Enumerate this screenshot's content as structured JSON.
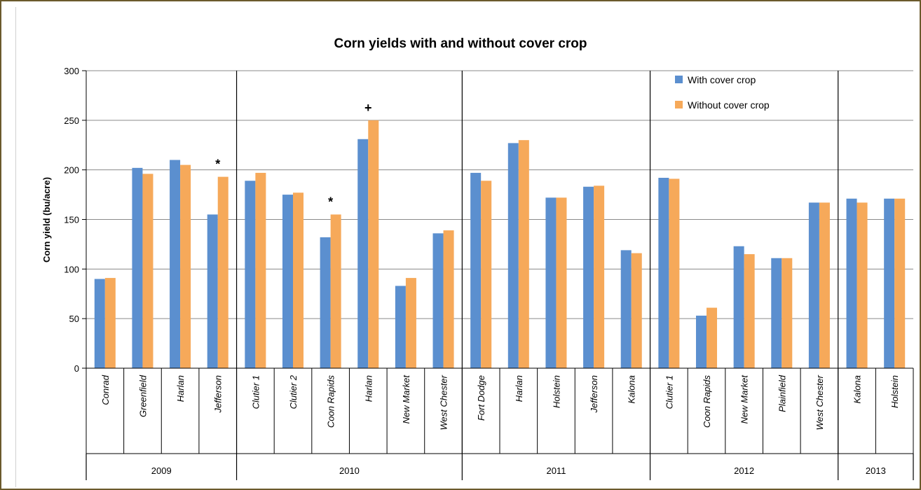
{
  "chart_data": {
    "type": "bar",
    "title": "Corn yields with and without cover crop",
    "ylabel": "Corn yield (bu/acre)",
    "xlabel": "",
    "ylim": [
      0,
      300
    ],
    "yticks": [
      0,
      50,
      100,
      150,
      200,
      250,
      300
    ],
    "grid": true,
    "legend_position": "top-right",
    "colors": {
      "with": "#5b8fcf",
      "without": "#f6a95a"
    },
    "groups": [
      {
        "label": "2009",
        "categories": [
          "Conrad",
          "Greenfield",
          "Harlan",
          "Jefferson"
        ]
      },
      {
        "label": "2010",
        "categories": [
          "Clutier 1",
          "Clutier 2",
          "Coon Rapids",
          "Harlan",
          "New Market",
          "West Chester"
        ]
      },
      {
        "label": "2011",
        "categories": [
          "Fort Dodge",
          "Harlan",
          "Holstein",
          "Jefferson",
          "Kalona"
        ]
      },
      {
        "label": "2012",
        "categories": [
          "Clutier 1",
          "Coon Rapids",
          "New Market",
          "Plainfield",
          "West Chester"
        ]
      },
      {
        "label": "2013",
        "categories": [
          "Kalona",
          "Holstein"
        ]
      }
    ],
    "series": [
      {
        "name": "With cover crop",
        "values": [
          90,
          202,
          210,
          155,
          189,
          175,
          132,
          231,
          83,
          136,
          197,
          227,
          172,
          183,
          119,
          192,
          53,
          123,
          111,
          167,
          171,
          171
        ]
      },
      {
        "name": "Without cover crop",
        "values": [
          91,
          196,
          205,
          193,
          197,
          177,
          155,
          250,
          91,
          139,
          189,
          230,
          172,
          184,
          116,
          191,
          61,
          115,
          111,
          167,
          167,
          171
        ]
      }
    ],
    "annotations": [
      {
        "text": "*",
        "category_index": 3
      },
      {
        "text": "*",
        "category_index": 6
      },
      {
        "text": "+",
        "category_index": 7
      }
    ]
  }
}
